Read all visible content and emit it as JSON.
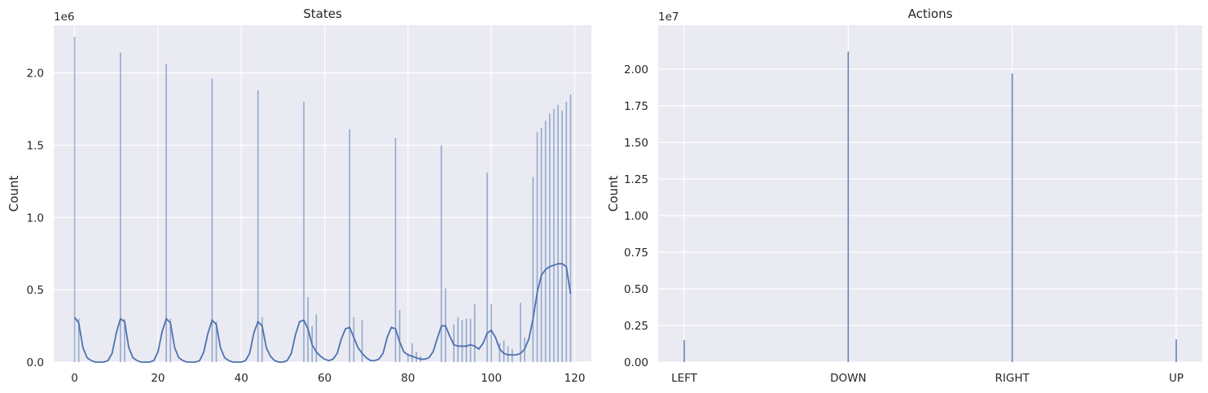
{
  "chart_data": [
    {
      "type": "bar",
      "subtype": "histogram-with-kde",
      "title": "States",
      "xlabel": "",
      "ylabel": "Count",
      "y_offset_label": "1e6",
      "xlim": [
        -5,
        124
      ],
      "ylim": [
        0,
        2.33
      ],
      "xticks": [
        0,
        20,
        40,
        60,
        80,
        100,
        120
      ],
      "yticks": [
        0.0,
        0.5,
        1.0,
        1.5,
        2.0
      ],
      "ytick_labels": [
        "0.0",
        "0.5",
        "1.0",
        "1.5",
        "2.0"
      ],
      "grid": true,
      "bar_color": "#4C72B0",
      "bins": [
        {
          "x": 0,
          "count": 2.25
        },
        {
          "x": 1,
          "count": 0.3
        },
        {
          "x": 11,
          "count": 2.14
        },
        {
          "x": 12,
          "count": 0.3
        },
        {
          "x": 22,
          "count": 2.06
        },
        {
          "x": 23,
          "count": 0.3
        },
        {
          "x": 33,
          "count": 1.96
        },
        {
          "x": 34,
          "count": 0.28
        },
        {
          "x": 44,
          "count": 1.88
        },
        {
          "x": 45,
          "count": 0.31
        },
        {
          "x": 55,
          "count": 1.8
        },
        {
          "x": 56,
          "count": 0.45
        },
        {
          "x": 57,
          "count": 0.25
        },
        {
          "x": 58,
          "count": 0.33
        },
        {
          "x": 66,
          "count": 1.61
        },
        {
          "x": 67,
          "count": 0.31
        },
        {
          "x": 69,
          "count": 0.29
        },
        {
          "x": 77,
          "count": 1.55
        },
        {
          "x": 78,
          "count": 0.36
        },
        {
          "x": 80,
          "count": 0.06
        },
        {
          "x": 81,
          "count": 0.13
        },
        {
          "x": 82,
          "count": 0.07
        },
        {
          "x": 83,
          "count": 0.04
        },
        {
          "x": 88,
          "count": 1.5
        },
        {
          "x": 89,
          "count": 0.51
        },
        {
          "x": 91,
          "count": 0.26
        },
        {
          "x": 92,
          "count": 0.31
        },
        {
          "x": 93,
          "count": 0.29
        },
        {
          "x": 94,
          "count": 0.3
        },
        {
          "x": 95,
          "count": 0.3
        },
        {
          "x": 96,
          "count": 0.4
        },
        {
          "x": 99,
          "count": 1.31
        },
        {
          "x": 100,
          "count": 0.4
        },
        {
          "x": 102,
          "count": 0.13
        },
        {
          "x": 103,
          "count": 0.15
        },
        {
          "x": 104,
          "count": 0.11
        },
        {
          "x": 105,
          "count": 0.09
        },
        {
          "x": 107,
          "count": 0.41
        },
        {
          "x": 108,
          "count": 0.17
        },
        {
          "x": 110,
          "count": 1.28
        },
        {
          "x": 111,
          "count": 1.59
        },
        {
          "x": 112,
          "count": 1.62
        },
        {
          "x": 113,
          "count": 1.67
        },
        {
          "x": 114,
          "count": 1.72
        },
        {
          "x": 115,
          "count": 1.75
        },
        {
          "x": 116,
          "count": 1.78
        },
        {
          "x": 117,
          "count": 1.74
        },
        {
          "x": 118,
          "count": 1.8
        },
        {
          "x": 119,
          "count": 1.85
        }
      ],
      "kde_series": {
        "name": "",
        "color": "#4C72B0",
        "x": [
          0,
          1,
          2,
          3,
          4,
          5,
          6,
          7,
          8,
          9,
          10,
          11,
          12,
          13,
          14,
          15,
          16,
          17,
          18,
          19,
          20,
          21,
          22,
          23,
          24,
          25,
          26,
          27,
          28,
          29,
          30,
          31,
          32,
          33,
          34,
          35,
          36,
          37,
          38,
          39,
          40,
          41,
          42,
          43,
          44,
          45,
          46,
          47,
          48,
          49,
          50,
          51,
          52,
          53,
          54,
          55,
          56,
          57,
          58,
          59,
          60,
          61,
          62,
          63,
          64,
          65,
          66,
          67,
          68,
          69,
          70,
          71,
          72,
          73,
          74,
          75,
          76,
          77,
          78,
          79,
          80,
          81,
          82,
          83,
          84,
          85,
          86,
          87,
          88,
          89,
          90,
          91,
          92,
          93,
          94,
          95,
          96,
          97,
          98,
          99,
          100,
          101,
          102,
          103,
          104,
          105,
          106,
          107,
          108,
          109,
          110,
          111,
          112,
          113,
          114,
          115,
          116,
          117,
          118,
          119
        ],
        "y": [
          0.31,
          0.27,
          0.1,
          0.03,
          0.01,
          0.0,
          0.0,
          0.0,
          0.01,
          0.06,
          0.2,
          0.3,
          0.28,
          0.1,
          0.03,
          0.01,
          0.0,
          0.0,
          0.0,
          0.01,
          0.07,
          0.21,
          0.3,
          0.27,
          0.1,
          0.03,
          0.01,
          0.0,
          0.0,
          0.0,
          0.01,
          0.07,
          0.2,
          0.29,
          0.26,
          0.1,
          0.03,
          0.01,
          0.0,
          0.0,
          0.0,
          0.01,
          0.06,
          0.2,
          0.28,
          0.25,
          0.1,
          0.04,
          0.01,
          0.0,
          0.0,
          0.01,
          0.06,
          0.19,
          0.28,
          0.29,
          0.23,
          0.12,
          0.07,
          0.04,
          0.02,
          0.01,
          0.02,
          0.06,
          0.16,
          0.23,
          0.24,
          0.17,
          0.1,
          0.06,
          0.03,
          0.01,
          0.01,
          0.02,
          0.06,
          0.17,
          0.24,
          0.23,
          0.14,
          0.07,
          0.05,
          0.04,
          0.03,
          0.02,
          0.02,
          0.03,
          0.07,
          0.16,
          0.25,
          0.25,
          0.18,
          0.12,
          0.11,
          0.11,
          0.11,
          0.12,
          0.11,
          0.09,
          0.13,
          0.2,
          0.22,
          0.17,
          0.09,
          0.06,
          0.05,
          0.05,
          0.05,
          0.06,
          0.09,
          0.16,
          0.3,
          0.48,
          0.6,
          0.64,
          0.66,
          0.67,
          0.68,
          0.68,
          0.66,
          0.47
        ]
      }
    },
    {
      "type": "bar",
      "subtype": "histogram",
      "title": "Actions",
      "xlabel": "",
      "ylabel": "Count",
      "y_offset_label": "1e7",
      "categories": [
        "LEFT",
        "DOWN",
        "RIGHT",
        "UP"
      ],
      "values": [
        0.15,
        2.12,
        1.97,
        0.155
      ],
      "ylim": [
        0,
        2.3
      ],
      "yticks": [
        0.0,
        0.25,
        0.5,
        0.75,
        1.0,
        1.25,
        1.5,
        1.75,
        2.0
      ],
      "ytick_labels": [
        "0.00",
        "0.25",
        "0.50",
        "0.75",
        "1.00",
        "1.25",
        "1.50",
        "1.75",
        "2.00"
      ],
      "grid": true,
      "bar_color": "#4C72B0"
    }
  ]
}
